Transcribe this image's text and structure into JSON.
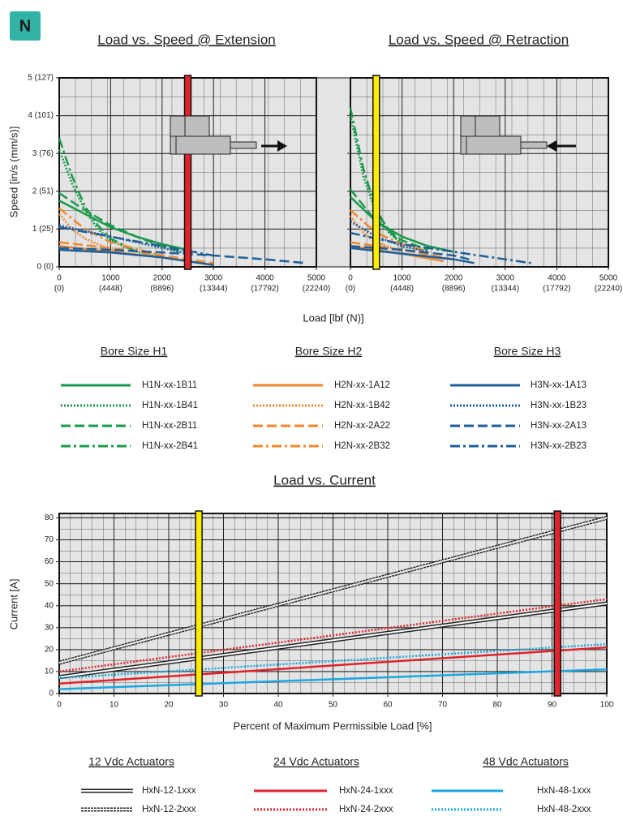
{
  "badge": "N",
  "chart_data": [
    {
      "type": "line",
      "title": "Load vs. Speed @ Extension",
      "ylabel": "Speed [in/s (mm/s)]",
      "xlabel": "Load [lbf (N)]",
      "xlim": [
        0,
        5000
      ],
      "xticks": [
        0,
        1000,
        2000,
        3000,
        4000,
        5000
      ],
      "xtick_sublabels": [
        "(0)",
        "(4448)",
        "(8896)",
        "(13344)",
        "(17792)",
        "(22240)"
      ],
      "ylim": [
        0,
        5
      ],
      "yticks": [
        {
          "value": 0,
          "label": "0 (0)"
        },
        {
          "value": 1,
          "label": "1 (25)"
        },
        {
          "value": 2,
          "label": "2 (51)"
        },
        {
          "value": 3,
          "label": "3 (76)"
        },
        {
          "value": 4,
          "label": "4 (101)"
        },
        {
          "value": 5,
          "label": "5 (127)"
        }
      ],
      "grid": true,
      "reference_lines": [
        {
          "x": 2500,
          "color": "#e0242b"
        }
      ],
      "legend_titles": [
        "Bore Size H1",
        "Bore Size H2",
        "Bore Size H3"
      ],
      "series": [
        {
          "name": "H1N-xx-1B11",
          "color": "#1a9a4a",
          "dash": "solid",
          "x": [
            0,
            500,
            1000,
            1500,
            2000,
            2500
          ],
          "values": [
            1.75,
            1.4,
            1.05,
            0.8,
            0.6,
            0.45
          ]
        },
        {
          "name": "H1N-xx-1B41",
          "color": "#1a9a4a",
          "dash": "dotted",
          "x": [
            0,
            250,
            500,
            750,
            1000,
            1500,
            2000
          ],
          "values": [
            3.1,
            2.2,
            1.5,
            1.0,
            0.7,
            0.4,
            0.25
          ]
        },
        {
          "name": "H1N-xx-2B11",
          "color": "#1a9a4a",
          "dash": "dashed",
          "x": [
            0,
            500,
            1000,
            1500,
            2000,
            2500
          ],
          "values": [
            1.95,
            1.5,
            1.1,
            0.8,
            0.55,
            0.35
          ]
        },
        {
          "name": "H1N-xx-2B41",
          "color": "#1a9a4a",
          "dash": "dashdot",
          "x": [
            0,
            250,
            500,
            750,
            1000,
            1500
          ],
          "values": [
            3.4,
            2.4,
            1.6,
            1.1,
            0.75,
            0.4
          ]
        },
        {
          "name": "H2N-xx-1A12",
          "color": "#f0872a",
          "dash": "solid",
          "x": [
            0,
            1000,
            2000,
            3000
          ],
          "values": [
            0.55,
            0.4,
            0.25,
            0.05
          ]
        },
        {
          "name": "H2N-xx-1B42",
          "color": "#f0872a",
          "dash": "dotted",
          "x": [
            0,
            250,
            500,
            1000,
            1500
          ],
          "values": [
            1.4,
            1.0,
            0.75,
            0.45,
            0.3
          ]
        },
        {
          "name": "H2N-xx-2A22",
          "color": "#f0872a",
          "dash": "dashed",
          "x": [
            0,
            1000,
            2000,
            3000
          ],
          "values": [
            0.65,
            0.5,
            0.3,
            0.1
          ]
        },
        {
          "name": "H2N-xx-2B32",
          "color": "#f0872a",
          "dash": "dashdot",
          "x": [
            0,
            500,
            1000,
            2000
          ],
          "values": [
            1.55,
            1.0,
            0.65,
            0.3
          ]
        },
        {
          "name": "H3N-xx-1A13",
          "color": "#1f5f99",
          "dash": "solid",
          "x": [
            0,
            1000,
            2000,
            3000
          ],
          "values": [
            0.45,
            0.38,
            0.25,
            0.05
          ]
        },
        {
          "name": "H3N-xx-1B23",
          "color": "#1f5f99",
          "dash": "dotted",
          "x": [
            0,
            1000,
            2000,
            2500
          ],
          "values": [
            1.1,
            0.8,
            0.5,
            0.35
          ]
        },
        {
          "name": "H3N-xx-2A13",
          "color": "#1f5f99",
          "dash": "dashed",
          "x": [
            0,
            1000,
            2000,
            3000,
            4000,
            4800
          ],
          "values": [
            0.5,
            0.45,
            0.38,
            0.3,
            0.2,
            0.1
          ]
        },
        {
          "name": "H3N-xx-2B23",
          "color": "#1f5f99",
          "dash": "dashdot",
          "x": [
            0,
            1000,
            2000,
            3000
          ],
          "values": [
            1.05,
            0.8,
            0.55,
            0.3
          ]
        }
      ]
    },
    {
      "type": "line",
      "title": "Load vs. Speed @ Retraction",
      "xlim": [
        0,
        5000
      ],
      "xticks": [
        0,
        1000,
        2000,
        3000,
        4000,
        5000
      ],
      "xtick_sublabels": [
        "(0)",
        "(4448)",
        "(8896)",
        "(13344)",
        "(17792)",
        "(22240)"
      ],
      "ylim": [
        0,
        5
      ],
      "yticks": [
        0,
        1,
        2,
        3,
        4,
        5
      ],
      "grid": true,
      "reference_lines": [
        {
          "x": 500,
          "color": "#ffed00"
        }
      ],
      "series": [
        {
          "color": "#1a9a4a",
          "dash": "solid",
          "x": [
            0,
            500,
            1000,
            1500,
            2000
          ],
          "values": [
            1.85,
            1.2,
            0.8,
            0.55,
            0.4
          ]
        },
        {
          "color": "#1a9a4a",
          "dash": "dotted",
          "x": [
            0,
            250,
            500,
            750,
            1000
          ],
          "values": [
            4.0,
            2.4,
            1.4,
            0.9,
            0.6
          ]
        },
        {
          "color": "#1a9a4a",
          "dash": "dashed",
          "x": [
            0,
            500,
            1000,
            1500
          ],
          "values": [
            2.05,
            1.2,
            0.7,
            0.45
          ]
        },
        {
          "color": "#1a9a4a",
          "dash": "dashdot",
          "x": [
            0,
            250,
            500,
            750,
            1000
          ],
          "values": [
            4.2,
            2.6,
            1.5,
            0.95,
            0.6
          ]
        },
        {
          "color": "#f0872a",
          "dash": "solid",
          "x": [
            0,
            1000,
            1800
          ],
          "values": [
            0.55,
            0.35,
            0.15
          ]
        },
        {
          "color": "#f0872a",
          "dash": "dotted",
          "x": [
            0,
            250,
            500,
            1000
          ],
          "values": [
            1.35,
            0.9,
            0.65,
            0.4
          ]
        },
        {
          "color": "#f0872a",
          "dash": "dashed",
          "x": [
            0,
            1000,
            2000
          ],
          "values": [
            0.65,
            0.45,
            0.2
          ]
        },
        {
          "color": "#f0872a",
          "dash": "dashdot",
          "x": [
            0,
            500,
            1000,
            1500
          ],
          "values": [
            1.5,
            0.9,
            0.6,
            0.4
          ]
        },
        {
          "color": "#1f5f99",
          "dash": "solid",
          "x": [
            0,
            1000,
            2000,
            2400
          ],
          "values": [
            0.5,
            0.35,
            0.2,
            0.1
          ]
        },
        {
          "color": "#1f5f99",
          "dash": "dotted",
          "x": [
            0,
            500,
            1000,
            1500
          ],
          "values": [
            1.2,
            0.8,
            0.55,
            0.4
          ]
        },
        {
          "color": "#1f5f99",
          "dash": "dashed",
          "x": [
            0,
            1000,
            2000,
            2300
          ],
          "values": [
            0.55,
            0.45,
            0.3,
            0.2
          ]
        },
        {
          "color": "#1f5f99",
          "dash": "dashdot",
          "x": [
            0,
            1000,
            2000,
            3000,
            3500
          ],
          "values": [
            0.9,
            0.6,
            0.4,
            0.2,
            0.1
          ]
        }
      ]
    },
    {
      "type": "line",
      "title": "Load vs. Current",
      "ylabel": "Current [A]",
      "xlabel": "Percent of Maximum Permissible Load [%]",
      "xlim": [
        0,
        100
      ],
      "xticks": [
        0,
        10,
        20,
        30,
        40,
        50,
        60,
        70,
        80,
        90,
        100
      ],
      "ylim": [
        0,
        82
      ],
      "yticks": [
        0,
        10,
        20,
        30,
        40,
        50,
        60,
        70,
        80
      ],
      "grid": true,
      "reference_lines": [
        {
          "x": 25.5,
          "color": "#ffed00"
        },
        {
          "x": 91,
          "color": "#e0242b"
        }
      ],
      "legend_titles": [
        "12 Vdc Actuators",
        "24 Vdc Actuators",
        "48 Vdc Actuators"
      ],
      "x": [
        0,
        100
      ],
      "series": [
        {
          "name": "HxN-12-1xxx",
          "color": "#ffffff",
          "outline": "#222222",
          "dash": "solid",
          "values": [
            7.5,
            41
          ]
        },
        {
          "name": "HxN-12-2xxx",
          "color": "#ffffff",
          "outline": "#222222",
          "dash": "dotted",
          "values": [
            14,
            80
          ]
        },
        {
          "name": "HxN-24-1xxx",
          "color": "#e0242b",
          "dash": "solid",
          "values": [
            4.5,
            21
          ]
        },
        {
          "name": "HxN-24-2xxx",
          "color": "#e0242b",
          "dash": "dotted",
          "values": [
            10,
            43
          ]
        },
        {
          "name": "HxN-48-1xxx",
          "color": "#1aa7e0",
          "dash": "solid",
          "values": [
            2,
            11
          ]
        },
        {
          "name": "HxN-48-2xxx",
          "color": "#1aa7e0",
          "dash": "dotted",
          "values": [
            7,
            22.5
          ]
        }
      ]
    }
  ]
}
